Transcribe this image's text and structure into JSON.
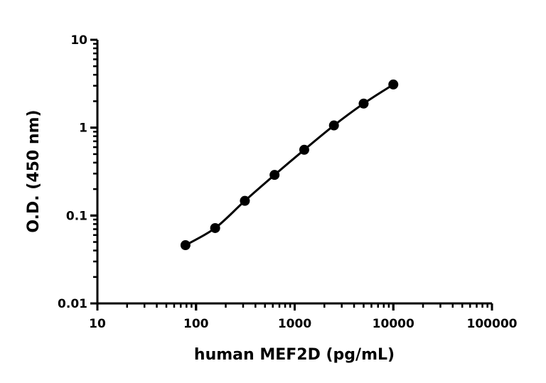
{
  "chart_data": {
    "type": "scatter",
    "title": "",
    "xlabel": "human MEF2D (pg/mL)",
    "ylabel": "O.D. (450 nm)",
    "x_scale": "log",
    "y_scale": "log",
    "xlim": [
      10,
      100000
    ],
    "ylim": [
      0.01,
      10
    ],
    "x_ticks": [
      "10",
      "100",
      "1000",
      "10000",
      "100000"
    ],
    "y_ticks": [
      "0.01",
      "0.1",
      "1",
      "10"
    ],
    "grid": false,
    "fit_curve": true,
    "color": "#000000",
    "x": [
      78.125,
      156.25,
      312.5,
      625,
      1250,
      2500,
      5000,
      10000
    ],
    "y": [
      0.046,
      0.072,
      0.147,
      0.29,
      0.56,
      1.06,
      1.88,
      3.1
    ]
  }
}
